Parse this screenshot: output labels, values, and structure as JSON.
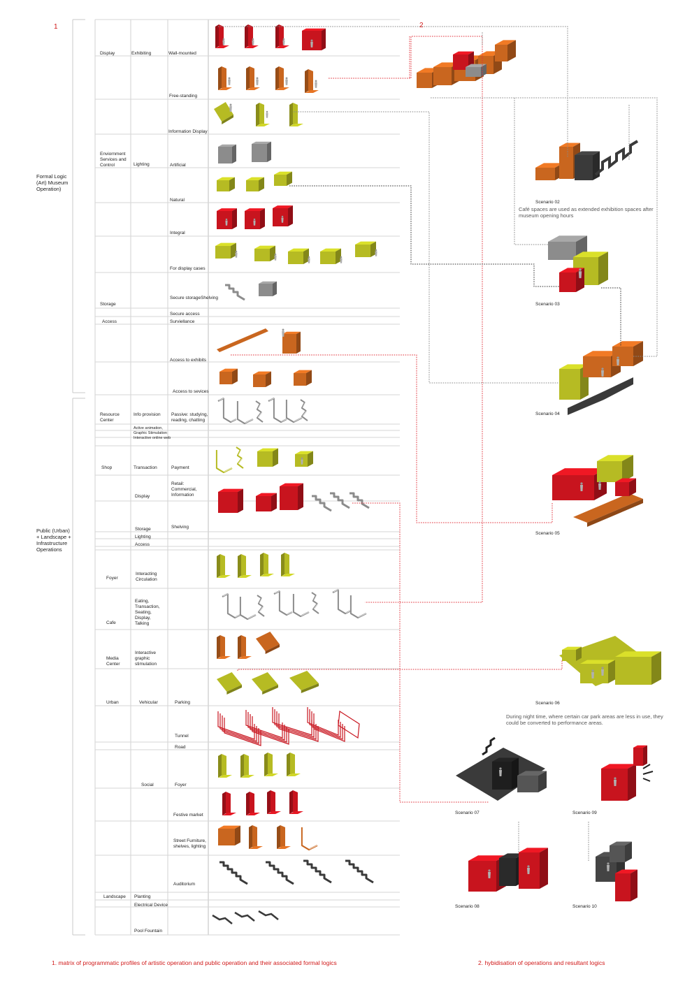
{
  "markers": {
    "one": "1",
    "two": "2"
  },
  "groups": {
    "formal": "Formal Logic (Art) Museum Operation)",
    "public": "Public (Urban) + Landscape + Infrastructure Operations"
  },
  "matrix": {
    "col1": {
      "display": "Display",
      "env": "Enviornment Services and Control",
      "storage": "Storage",
      "access": "Access",
      "resource": "Resource Center",
      "shop": "Shop",
      "foyer": "Foyer",
      "cafe": "Cafe",
      "media": "Media Center",
      "urban": "Urban",
      "landscape": "Landscape"
    },
    "col2": {
      "exhibiting": "Exhibiting",
      "lighting": "Lighting",
      "info_provision": "Info provision",
      "active": "Active animation, Graphic Stimulation Interactive online web",
      "transaction": "Transaction",
      "display": "Display",
      "storage": "Storage",
      "lighting2": "Lighting",
      "access": "Access",
      "interacting": "Interacting Circulation",
      "eating": "Eating, Transaction, Seating, Display, Talking",
      "interactive": "Interactive graphic stimulation",
      "vehicular": "Vehicular",
      "social": "Social",
      "planting": "Planting",
      "electrical": "Electrical Device",
      "pool": "Pool Fountain"
    },
    "col3": {
      "wall": "Wall-mounted",
      "free": "Free-standing",
      "info_display": "Information Display",
      "artificial": "Artificial",
      "natural": "Natural",
      "integral": "Integral",
      "display_cases": "For display cases",
      "secure_storage": "Secure storageShelving",
      "secure_access": "Secure access",
      "surveillance": "Surviellance",
      "access_exhibits": "Access to exhibits",
      "access_services": "Access to sevices",
      "passive": "Passive: studying, reading, chatting",
      "payment": "Payment",
      "retail": "Retail: Commercial, Information",
      "shelving": "Shelving",
      "parking": "Parking",
      "tunnel": "Tunnel",
      "road": "Road",
      "foyer": "Foyer",
      "festive": "Festive market",
      "street": "Street Furniture, shelves, lighting",
      "auditorium": "Auditorium"
    }
  },
  "scenarios": {
    "s02": "Scenario 02",
    "s02_note": "Café spaces are used as extended exhibition spaces after museum opening hours",
    "s03": "Scenario 03",
    "s04": "Scenario 04",
    "s05": "Scenario 05",
    "s06": "Scenario 06",
    "s06_note": "During night time, where certain car park areas are less in use, they could be converted to performance areas.",
    "s07": "Scenario 07",
    "s08": "Scenario 08",
    "s09": "Scenario 09",
    "s10": "Scenario 10"
  },
  "captions": {
    "left": "1. matrix of programmatic profiles of artistic operation  and public operation and their associated formal logics",
    "right": "2. hybidisation of operations and resultant logics"
  },
  "colors": {
    "red": "#c8141e",
    "orange": "#c9661f",
    "lime": "#b6bb23",
    "gray": "#8c8c8c",
    "dark": "#3a3a3a",
    "line": "#cccccc",
    "caption": "#d01818"
  }
}
